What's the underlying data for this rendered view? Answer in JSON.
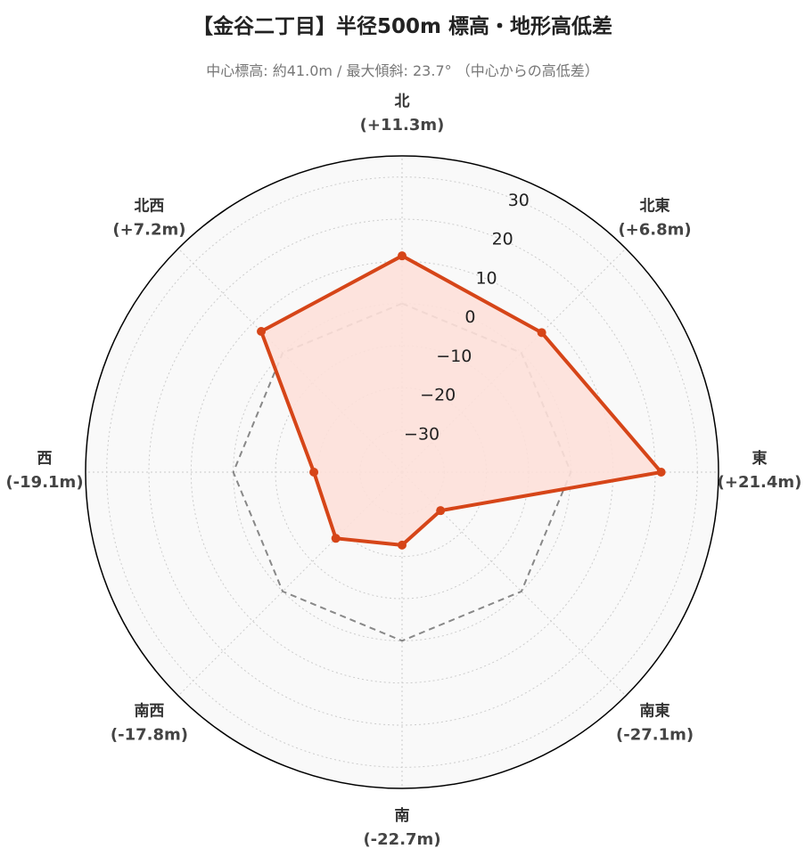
{
  "title": "【金谷二丁目】半径500m 標高・地形高低差",
  "subtitle": "中心標高: 約41.0m / 最大傾斜: 23.7° （中心からの高低差）",
  "chart_data": {
    "type": "radar",
    "title": "【金谷二丁目】半径500m 標高・地形高低差",
    "subtitle": "中心標高: 約41.0m / 最大傾斜: 23.7° （中心からの高低差）",
    "directions": [
      "北",
      "北東",
      "東",
      "南東",
      "南",
      "南西",
      "西",
      "北西"
    ],
    "value_labels": [
      "(+11.3m)",
      "(+6.8m)",
      "(+21.4m)",
      "(-27.1m)",
      "(-22.7m)",
      "(-17.8m)",
      "(-19.1m)",
      "(+7.2m)"
    ],
    "values": [
      11.3,
      6.8,
      21.4,
      -27.1,
      -22.7,
      -17.8,
      -19.1,
      7.2
    ],
    "reference_value": 0,
    "radial_range": [
      -40,
      35
    ],
    "radial_ticks": [
      -30,
      -20,
      -10,
      0,
      10,
      20,
      30
    ],
    "radial_tick_labels": [
      "−30",
      "−20",
      "−10",
      "0",
      "10",
      "20",
      "30"
    ],
    "grid": true,
    "colors": {
      "series_line": "#d64518",
      "series_fill": "#fde0d9",
      "reference_line": "#888888",
      "plot_background": "#f9f9f9",
      "outer_circle": "#000000"
    }
  }
}
